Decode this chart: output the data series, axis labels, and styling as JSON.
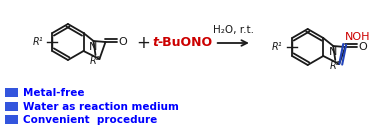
{
  "bg_color": "#ffffff",
  "blue_color": "#0000ff",
  "red_color": "#cc0000",
  "black_color": "#1a1a1a",
  "legend_items": [
    "Metal-free",
    "Water as reaction medium",
    "Convenient  procedure"
  ],
  "legend_box_color": "#3355dd",
  "condition_text": "H₂O, r.t.",
  "figsize": [
    3.78,
    1.36
  ],
  "dpi": 100
}
